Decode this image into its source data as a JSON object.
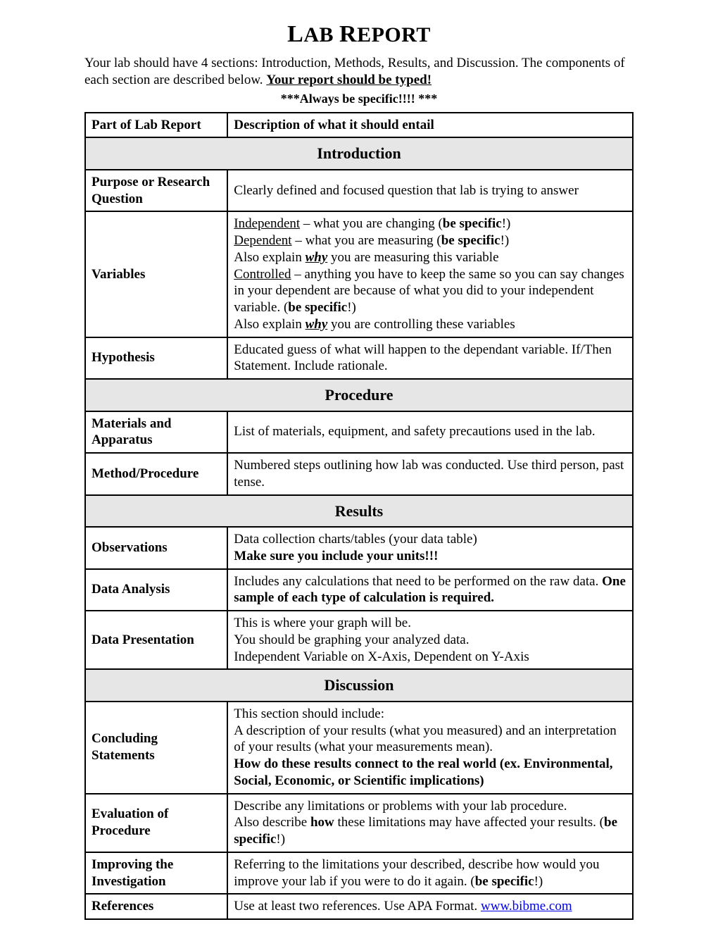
{
  "title": "LAB REPORT",
  "intro_line1": "Your lab should have 4 sections: Introduction, Methods, Results, and Discussion.  The components of each section are described below.  ",
  "intro_emph": "Your report should be typed!",
  "subnote": "***Always be specific!!!! ***",
  "columns": {
    "part": "Part of Lab Report",
    "desc": "Description of what it should entail"
  },
  "sections": {
    "introduction": "Introduction",
    "procedure": "Procedure",
    "results": "Results",
    "discussion": "Discussion"
  },
  "rows": {
    "purpose": {
      "part": "Purpose or Research Question",
      "desc": "Clearly defined and focused question that lab is trying to answer"
    },
    "variables": {
      "part": "Variables",
      "independent_label": "Independent",
      "independent_text": " – what you are changing (",
      "be_specific": "be specific",
      "close_paren_bang": "!)",
      "dependent_label": "Dependent",
      "dependent_text": " – what you are measuring (",
      "also_explain_pre": "Also explain ",
      "why": "why",
      "also_explain_measuring": " you are measuring this variable",
      "controlled_label": "Controlled",
      "controlled_text": " – anything you have to keep the same so you can say changes in your dependent are because of what you did to your independent variable. (",
      "also_explain_controlling": " you are controlling these variables"
    },
    "hypothesis": {
      "part": "Hypothesis",
      "desc": "Educated guess of what will happen to the dependant variable.  If/Then Statement. Include rationale."
    },
    "materials": {
      "part": "Materials and Apparatus",
      "desc": "List of materials, equipment, and safety precautions used in the lab."
    },
    "method": {
      "part": "Method/Procedure",
      "desc": "Numbered steps outlining how lab was conducted.  Use third person, past tense."
    },
    "observations": {
      "part": "Observations",
      "line1": "Data collection charts/tables (your data table)",
      "line2_bold": "Make sure you include your units!!!"
    },
    "data_analysis": {
      "part": "Data Analysis",
      "pre": "Includes any calculations that need to be performed on the raw data.  ",
      "bold": "One sample of each type of calculation is required."
    },
    "data_presentation": {
      "part": "Data Presentation",
      "l1": "This is where your graph will be.",
      "l2": "You should be graphing your analyzed data.",
      "l3": "Independent Variable on X-Axis, Dependent on Y-Axis"
    },
    "concluding": {
      "part": "Concluding Statements",
      "l1": "This section should include:",
      "l2": "A description of your results (what you measured) and an interpretation of your results (what your measurements mean).",
      "l3_bold": "How do these results connect to the real world (ex. Environmental, Social, Economic, or Scientific implications)"
    },
    "evaluation": {
      "part": "Evaluation of Procedure",
      "l1": "Describe any limitations or problems with your lab procedure.",
      "l2_pre": "Also describe ",
      "l2_how": "how",
      "l2_mid": " these limitations may have affected your results. (",
      "be_specific": "be specific",
      "close_paren_bang": "!)"
    },
    "improving": {
      "part": "Improving the Investigation",
      "pre": "Referring to the limitations your described, describe how would you improve your lab if you were to do it again. (",
      "be_specific": "be specific",
      "close_paren_bang": "!)"
    },
    "references": {
      "part": "References",
      "pre": "Use at least two references.  Use APA Format.  ",
      "link_text": "www.bibme.com"
    }
  },
  "colors": {
    "background": "#ffffff",
    "text": "#000000",
    "border": "#000000",
    "section_header_bg": "#e6e6e6",
    "link": "#0000ee"
  }
}
